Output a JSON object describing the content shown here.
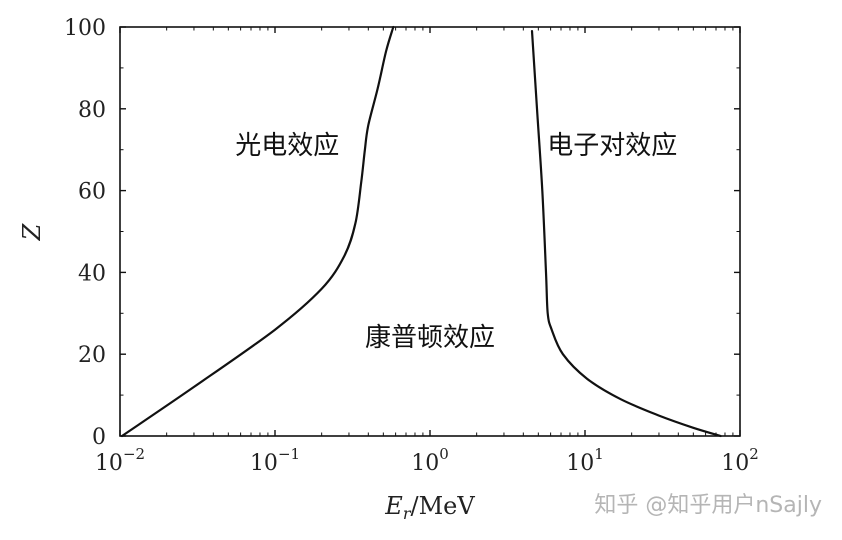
{
  "chart_data": {
    "type": "line",
    "x_scale": "log",
    "xlim": [
      0.01,
      100
    ],
    "ylim": [
      0,
      100
    ],
    "grid": false,
    "xlabel": {
      "main": "E",
      "sub": "r",
      "rest": "/MeV"
    },
    "ylabel": "Z",
    "x_ticks": [
      {
        "value": 0.01,
        "base": "10",
        "exp": "−2"
      },
      {
        "value": 0.1,
        "base": "10",
        "exp": "−1"
      },
      {
        "value": 1,
        "base": "10",
        "exp": "0"
      },
      {
        "value": 10,
        "base": "10",
        "exp": "1"
      },
      {
        "value": 100,
        "base": "10",
        "exp": "2"
      }
    ],
    "y_ticks": [
      0,
      20,
      40,
      60,
      80,
      100
    ],
    "series": [
      {
        "x": [
          0.0103,
          0.03,
          0.1,
          0.2,
          0.28,
          0.33,
          0.36,
          0.38,
          0.4,
          0.46,
          0.52,
          0.58
        ],
        "y": [
          0,
          12,
          26,
          36,
          44,
          52,
          62,
          70,
          76,
          85,
          94,
          100
        ]
      },
      {
        "x": [
          4.55,
          4.9,
          5.3,
          5.6,
          5.75,
          6.1,
          7.2,
          10.3,
          17,
          30,
          50,
          75
        ],
        "y": [
          99,
          80,
          60,
          40,
          30,
          26,
          20,
          14,
          9,
          5,
          2,
          0
        ]
      }
    ],
    "annotations": [
      {
        "text": "光电效应",
        "x": 0.12,
        "y": 69
      },
      {
        "text": "电子对效应",
        "x": 15,
        "y": 69
      },
      {
        "text": "康普顿效应",
        "x": 1.0,
        "y": 22
      }
    ]
  },
  "watermark": "知乎 @知乎用户nSajly"
}
